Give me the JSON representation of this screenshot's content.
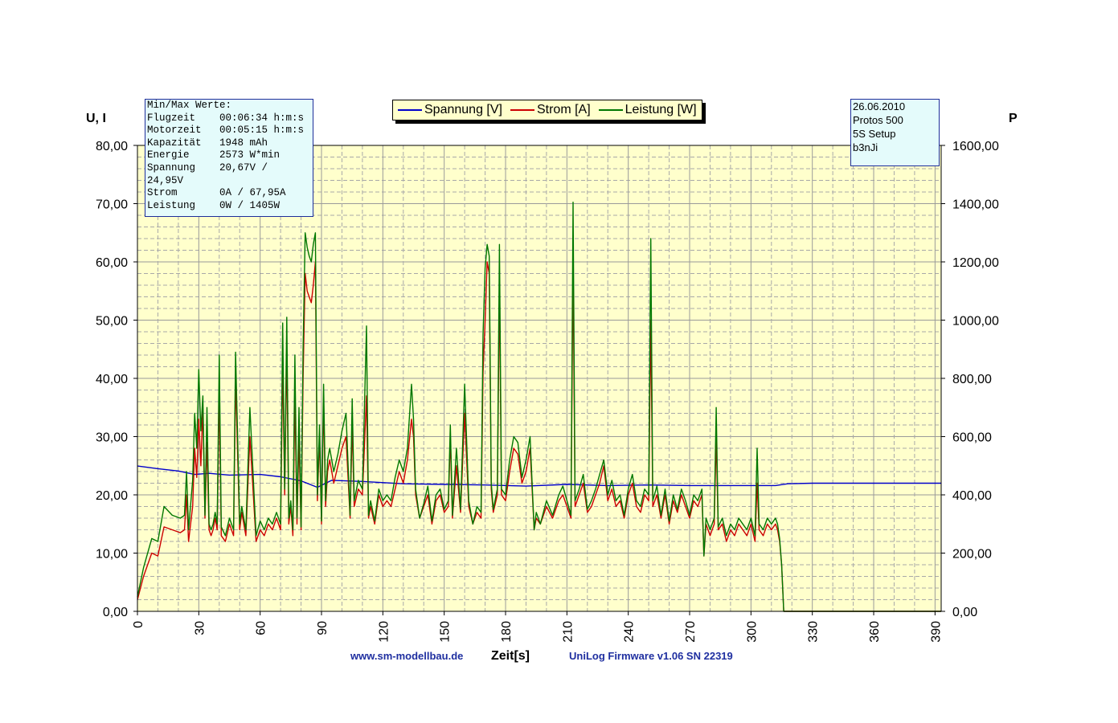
{
  "chart_data": {
    "type": "line",
    "y_left_label": "U, I",
    "y_right_label": "P",
    "xlabel": "Zeit[s]",
    "xlim": [
      0,
      393
    ],
    "ylim_left": [
      0,
      80
    ],
    "ylim_right": [
      0,
      1600
    ],
    "x_ticks": [
      "0",
      "30",
      "60",
      "90",
      "120",
      "150",
      "180",
      "210",
      "240",
      "270",
      "300",
      "330",
      "360",
      "390"
    ],
    "y_left_ticks": [
      "0,00",
      "10,00",
      "20,00",
      "30,00",
      "40,00",
      "50,00",
      "60,00",
      "70,00",
      "80,00"
    ],
    "y_right_ticks": [
      "0,00",
      "200,00",
      "400,00",
      "600,00",
      "800,00",
      "1000,00",
      "1200,00",
      "1400,00",
      "1600,00"
    ],
    "legend": [
      "Spannung [V]",
      "Strom [A]",
      "Leistung [W]"
    ],
    "series": [
      {
        "name": "Spannung [V]",
        "color": "#0000cc",
        "axis": "left",
        "x": [
          0,
          10,
          20,
          28,
          35,
          45,
          60,
          70,
          80,
          88,
          95,
          110,
          130,
          150,
          170,
          190,
          210,
          230,
          250,
          270,
          280,
          300,
          312,
          318,
          330,
          360,
          393
        ],
        "y": [
          24.95,
          24.5,
          24.1,
          23.5,
          23.7,
          23.4,
          23.5,
          23.1,
          22.4,
          21.3,
          22.5,
          22.3,
          21.9,
          21.8,
          21.7,
          21.5,
          21.8,
          21.6,
          21.7,
          21.6,
          21.6,
          21.6,
          21.6,
          21.9,
          22.0,
          22.0,
          22.0
        ]
      },
      {
        "name": "Strom [A]",
        "color": "#cc0000",
        "axis": "left",
        "x": [
          0,
          3,
          7,
          10,
          13,
          17,
          21,
          23,
          24,
          25,
          27,
          28,
          29,
          30,
          31,
          32,
          33,
          34,
          35,
          36,
          37,
          38,
          39,
          40,
          41,
          43,
          45,
          47,
          48,
          50,
          51,
          53,
          55,
          58,
          60,
          62,
          64,
          66,
          68,
          70,
          71,
          72,
          73,
          74,
          75,
          76,
          77,
          78,
          79,
          80,
          81,
          82,
          83,
          84,
          85,
          86,
          87,
          88,
          89,
          90,
          91,
          92,
          93,
          94,
          96,
          98,
          100,
          102,
          104,
          105,
          106,
          108,
          110,
          112,
          113,
          114,
          116,
          118,
          120,
          122,
          124,
          126,
          128,
          130,
          132,
          134,
          135,
          136,
          138,
          140,
          142,
          144,
          146,
          148,
          150,
          152,
          153,
          154,
          156,
          158,
          160,
          162,
          164,
          166,
          168,
          169,
          170,
          171,
          172,
          173,
          174,
          176,
          177,
          178,
          180,
          182,
          184,
          186,
          188,
          190,
          192,
          194,
          195,
          197,
          200,
          203,
          206,
          208,
          210,
          212,
          213,
          214,
          216,
          218,
          220,
          222,
          224,
          226,
          228,
          230,
          232,
          234,
          236,
          238,
          240,
          242,
          244,
          246,
          248,
          250,
          251,
          252,
          254,
          256,
          258,
          260,
          262,
          264,
          266,
          268,
          270,
          272,
          274,
          276,
          277,
          278,
          280,
          282,
          283,
          284,
          286,
          288,
          290,
          292,
          294,
          296,
          298,
          300,
          302,
          303,
          304,
          306,
          308,
          310,
          312,
          313,
          314,
          315,
          316,
          320,
          340,
          360,
          393
        ],
        "y": [
          2,
          6,
          10,
          9.5,
          14.5,
          14,
          13.5,
          14,
          20,
          12,
          18,
          28,
          23,
          33,
          25,
          35,
          16,
          29,
          14,
          13,
          14,
          16,
          14,
          38,
          13,
          12,
          15,
          13,
          40,
          14,
          17,
          13,
          30,
          12,
          14,
          13,
          15,
          14,
          16,
          14,
          43,
          20,
          45,
          15,
          18,
          13,
          37,
          15,
          30,
          14,
          40,
          58,
          55,
          54,
          53,
          56,
          60,
          19,
          30,
          15,
          36,
          18,
          24,
          26,
          22,
          25,
          28,
          30,
          16,
          32,
          18,
          21,
          20,
          37,
          16,
          18,
          15,
          20,
          18,
          19,
          18,
          21,
          24,
          22,
          26,
          33,
          30,
          20,
          16,
          18,
          20,
          15,
          19,
          20,
          17,
          18,
          30,
          16,
          25,
          17,
          34,
          18,
          15,
          17,
          16,
          41,
          50,
          60,
          58,
          21,
          17,
          20,
          56,
          20,
          19,
          24,
          28,
          27,
          22,
          24,
          28,
          14,
          16,
          15,
          18,
          16,
          19,
          20,
          18,
          16,
          60,
          18,
          20,
          22,
          17,
          18,
          20,
          22,
          25,
          19,
          21,
          18,
          19,
          16,
          20,
          22,
          18,
          17,
          20,
          19,
          50,
          18,
          20,
          16,
          20,
          15,
          19,
          17,
          20,
          18,
          16,
          19,
          18,
          20,
          9.5,
          15,
          13,
          15,
          30,
          14,
          15,
          12,
          14,
          13,
          15,
          14,
          13,
          15,
          12,
          22,
          14,
          13,
          15,
          14,
          15,
          14,
          12,
          8,
          0,
          0,
          0,
          0,
          0
        ]
      },
      {
        "name": "Leistung [W]",
        "color": "#007700",
        "axis": "right",
        "x": [
          0,
          3,
          7,
          10,
          13,
          17,
          21,
          23,
          24,
          25,
          27,
          28,
          29,
          30,
          31,
          32,
          33,
          34,
          35,
          36,
          37,
          38,
          39,
          40,
          41,
          43,
          45,
          47,
          48,
          50,
          51,
          53,
          55,
          58,
          60,
          62,
          64,
          66,
          68,
          70,
          71,
          72,
          73,
          74,
          75,
          76,
          77,
          78,
          79,
          80,
          81,
          82,
          83,
          84,
          85,
          86,
          87,
          88,
          89,
          90,
          91,
          92,
          93,
          94,
          96,
          98,
          100,
          102,
          104,
          105,
          106,
          108,
          110,
          112,
          113,
          114,
          116,
          118,
          120,
          122,
          124,
          126,
          128,
          130,
          132,
          134,
          135,
          136,
          138,
          140,
          142,
          144,
          146,
          148,
          150,
          152,
          153,
          154,
          156,
          158,
          160,
          162,
          164,
          166,
          168,
          169,
          170,
          171,
          172,
          173,
          174,
          176,
          177,
          178,
          180,
          182,
          184,
          186,
          188,
          190,
          192,
          194,
          195,
          197,
          200,
          203,
          206,
          208,
          210,
          212,
          213,
          214,
          216,
          218,
          220,
          222,
          224,
          226,
          228,
          230,
          232,
          234,
          236,
          238,
          240,
          242,
          244,
          246,
          248,
          250,
          251,
          252,
          254,
          256,
          258,
          260,
          262,
          264,
          266,
          268,
          270,
          272,
          274,
          276,
          277,
          278,
          280,
          282,
          283,
          284,
          286,
          288,
          290,
          292,
          294,
          296,
          298,
          300,
          302,
          303,
          304,
          306,
          308,
          310,
          312,
          313,
          314,
          315,
          316,
          320,
          340,
          360,
          393
        ],
        "y": [
          50,
          150,
          250,
          240,
          360,
          330,
          320,
          330,
          480,
          280,
          450,
          680,
          560,
          830,
          620,
          740,
          330,
          700,
          300,
          280,
          300,
          340,
          300,
          880,
          290,
          260,
          320,
          280,
          890,
          300,
          360,
          280,
          700,
          260,
          310,
          280,
          320,
          300,
          340,
          300,
          990,
          420,
          1010,
          320,
          380,
          280,
          880,
          320,
          700,
          290,
          900,
          1300,
          1250,
          1220,
          1200,
          1260,
          1300,
          400,
          640,
          310,
          780,
          380,
          520,
          560,
          480,
          540,
          620,
          680,
          330,
          730,
          380,
          450,
          420,
          980,
          330,
          380,
          310,
          420,
          380,
          400,
          380,
          460,
          520,
          480,
          560,
          780,
          660,
          420,
          320,
          370,
          430,
          310,
          400,
          420,
          350,
          380,
          640,
          330,
          560,
          350,
          780,
          380,
          300,
          360,
          340,
          950,
          1180,
          1260,
          1220,
          440,
          350,
          420,
          1260,
          420,
          400,
          520,
          600,
          580,
          460,
          520,
          600,
          280,
          340,
          300,
          380,
          330,
          400,
          430,
          380,
          330,
          1405,
          380,
          420,
          470,
          350,
          380,
          420,
          470,
          520,
          400,
          450,
          380,
          400,
          330,
          420,
          470,
          380,
          360,
          420,
          400,
          1280,
          380,
          430,
          330,
          420,
          310,
          400,
          350,
          420,
          380,
          330,
          400,
          380,
          420,
          190,
          320,
          280,
          320,
          700,
          290,
          320,
          260,
          300,
          280,
          320,
          300,
          280,
          320,
          260,
          560,
          300,
          280,
          320,
          300,
          320,
          300,
          250,
          160,
          0,
          0,
          0,
          0,
          0
        ]
      }
    ]
  },
  "info_box": {
    "lines": [
      "Min/Max Werte:",
      "Flugzeit    00:06:34 h:m:s",
      "Motorzeit   00:05:15 h:m:s",
      "Kapazität   1948 mAh",
      "Energie     2573 W*min",
      "Spannung    20,67V /",
      "24,95V",
      "Strom       0A / 67,95A",
      "Leistung    0W / 1405W"
    ]
  },
  "meta_box": {
    "lines": [
      "26.06.2010",
      "Protos 500",
      "5S Setup",
      "b3nJi"
    ]
  },
  "footer": {
    "website": "www.sm-modellbau.de",
    "firmware": "UniLog Firmware v1.06 SN 22319"
  }
}
